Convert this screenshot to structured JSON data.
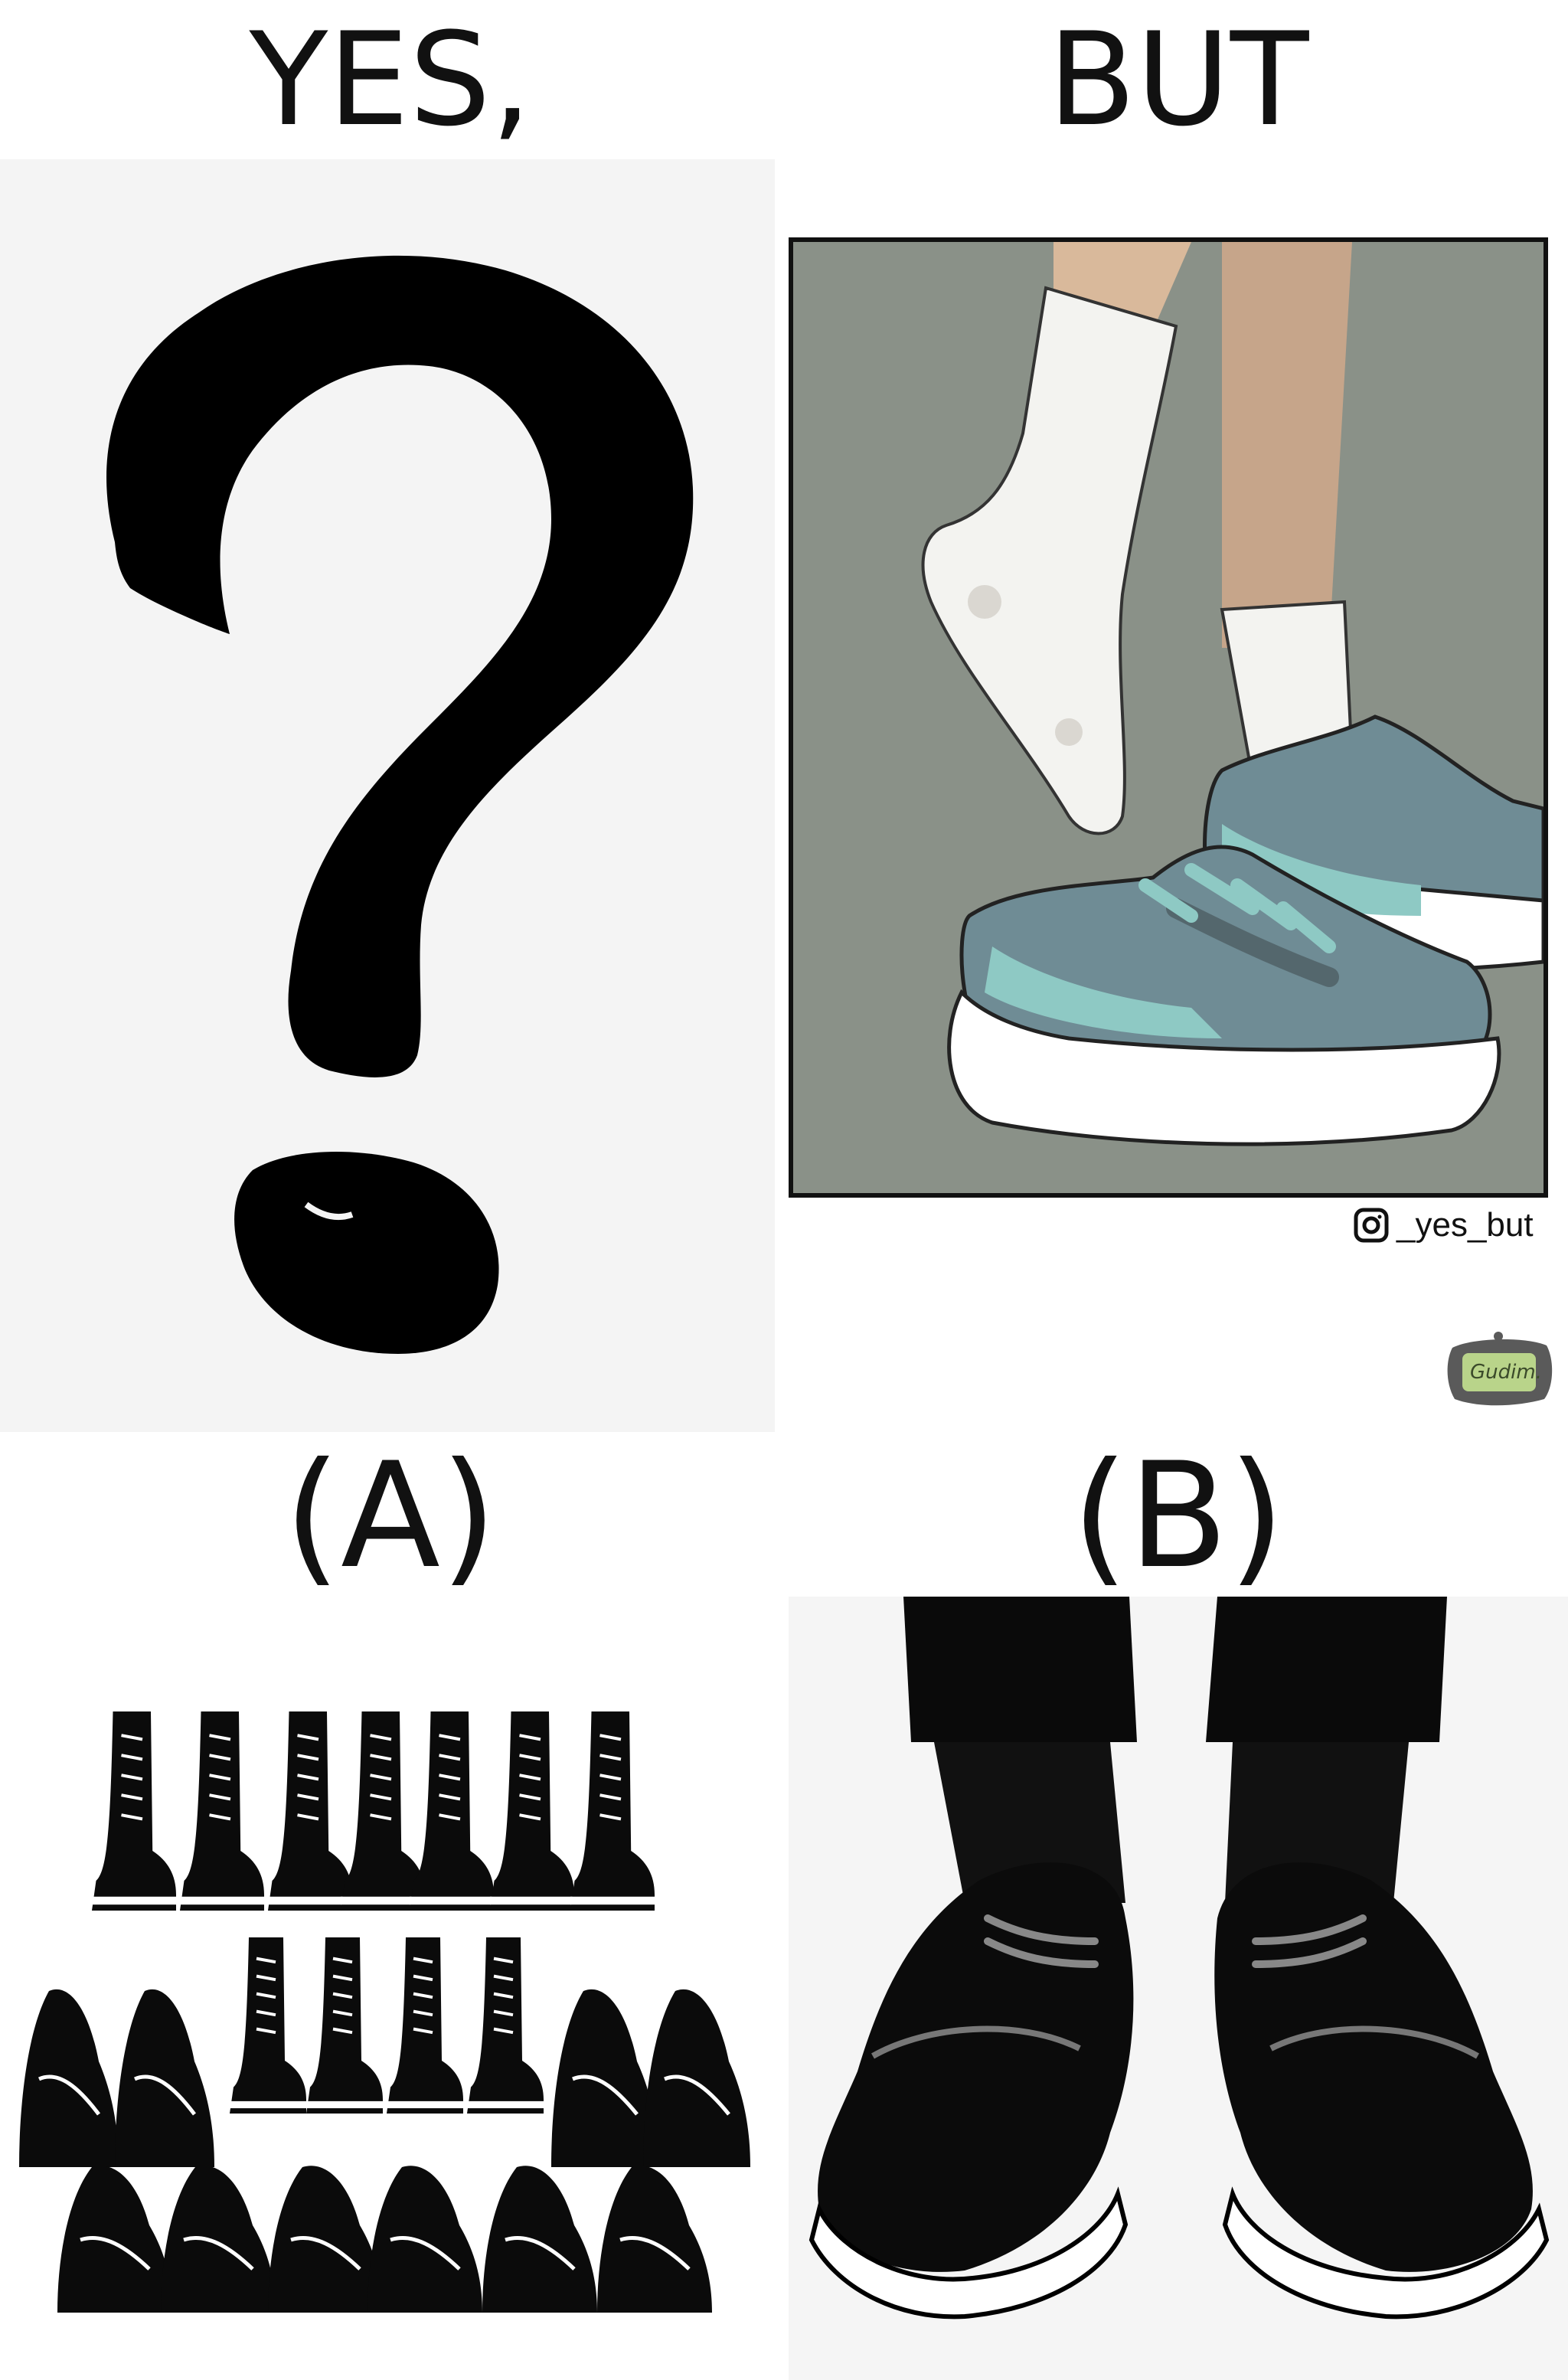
{
  "headings": {
    "top_left": "YES,",
    "top_right": "BUT",
    "option_a": "(A)",
    "option_b": "(B)"
  },
  "credit": {
    "handle": "_yes_but",
    "icon": "instagram-icon"
  },
  "signature": {
    "text": "Gudim."
  },
  "icons": {
    "question_mark": "question-mark-icon"
  },
  "colors": {
    "question_bg": "#f4f4f4",
    "comic_bg": "#8a9188",
    "sneaker_teal": "#8ec9c4",
    "sneaker_grey": "#6f8c95",
    "leather_black": "#0b0b0b"
  }
}
